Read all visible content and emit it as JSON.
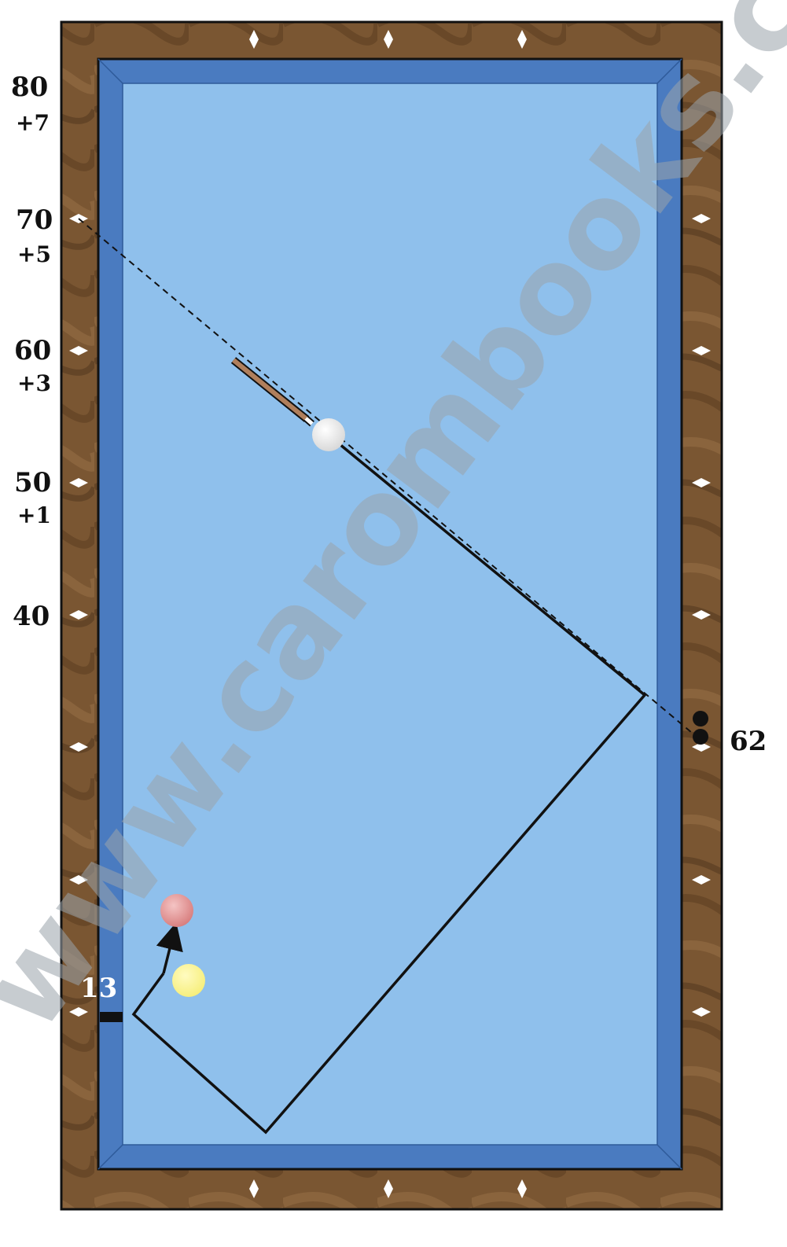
{
  "watermark": "www.carombooks.com",
  "diamond_labels_left": [
    {
      "value": "80",
      "sub": "+7"
    },
    {
      "value": "70",
      "sub": "+5"
    },
    {
      "value": "60",
      "sub": "+3"
    },
    {
      "value": "50",
      "sub": "+1"
    },
    {
      "value": "40",
      "sub": ""
    }
  ],
  "right_label": "62",
  "contact_label": "13",
  "colors": {
    "frame_wood": "#7a5632",
    "cushion": "#4a7bc0",
    "cloth": "#8fc0ec",
    "cue_ball": "#f2f2f2",
    "object_ball_red": "#e49a9a",
    "object_ball_yellow": "#fbf58c",
    "cue_stick": "#b07f5c"
  }
}
